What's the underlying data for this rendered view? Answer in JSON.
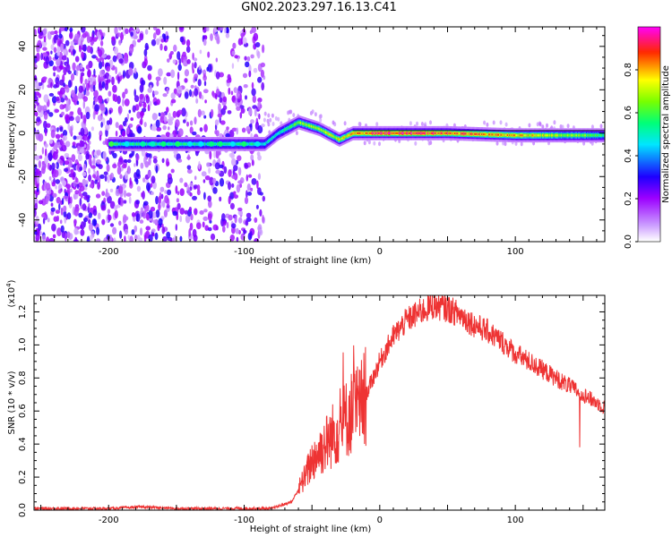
{
  "title": "GN02.2023.297.16.13.C41",
  "chart_data": [
    {
      "type": "heatmap",
      "xlabel": "Height of straight line (km)",
      "ylabel": "Frequency (Hz)",
      "xlim": [
        -255,
        166
      ],
      "ylim": [
        -50,
        49
      ],
      "xticks": [
        -200,
        -100,
        0,
        100
      ],
      "yticks": [
        -40,
        -20,
        0,
        20,
        40
      ],
      "colorbar": {
        "label": "Normalized spectral amplitude",
        "range": [
          0,
          1
        ],
        "ticks": [
          "0.0",
          "0.2",
          "0.4",
          "0.6",
          "0.8"
        ],
        "colormap": [
          "#ffffff",
          "#9c00ff",
          "#0000ff",
          "#00ffff",
          "#00ff00",
          "#ffff00",
          "#ff0000",
          "#ff00ff"
        ]
      },
      "ridge": [
        {
          "x": -200,
          "freq": -5,
          "amp": 0.55
        },
        {
          "x": -150,
          "freq": -5,
          "amp": 0.55
        },
        {
          "x": -100,
          "freq": -5,
          "amp": 0.55
        },
        {
          "x": -85,
          "freq": -5,
          "amp": 0.5
        },
        {
          "x": -75,
          "freq": 0,
          "amp": 0.55
        },
        {
          "x": -60,
          "freq": 5,
          "amp": 0.65
        },
        {
          "x": -45,
          "freq": 2,
          "amp": 0.7
        },
        {
          "x": -30,
          "freq": -3,
          "amp": 0.75
        },
        {
          "x": -20,
          "freq": 0,
          "amp": 0.8
        },
        {
          "x": 0,
          "freq": 0,
          "amp": 0.95
        },
        {
          "x": 50,
          "freq": 0,
          "amp": 0.9
        },
        {
          "x": 100,
          "freq": -1,
          "amp": 0.8
        },
        {
          "x": 166,
          "freq": -1,
          "amp": 0.6
        }
      ]
    },
    {
      "type": "line",
      "xlabel": "Height of straight line (km)",
      "ylabel": "SNR (10 * v/v)",
      "yscale_label": "(x10",
      "yscale_exp": "4",
      "xlim": [
        -255,
        166
      ],
      "ylim": [
        0,
        1.3
      ],
      "xticks": [
        -200,
        -100,
        0,
        100
      ],
      "yticks": [
        "0.0",
        "0.2",
        "0.4",
        "0.6",
        "0.8",
        "1.0",
        "1.2"
      ],
      "color": "#ee3333",
      "series": [
        {
          "x": [
            -255,
            -200,
            -175,
            -150,
            -100,
            -80,
            -65,
            -55,
            -50,
            -45,
            -40,
            -35,
            -30,
            -25,
            -20,
            -15,
            -10,
            -5,
            0,
            10,
            20,
            30,
            40,
            50,
            60,
            70,
            80,
            90,
            100,
            110,
            120,
            130,
            140,
            150,
            160,
            166
          ],
          "values": [
            0.01,
            0.01,
            0.02,
            0.01,
            0.01,
            0.01,
            0.05,
            0.2,
            0.3,
            0.35,
            0.4,
            0.45,
            0.5,
            0.55,
            0.6,
            0.62,
            0.7,
            0.8,
            0.9,
            1.05,
            1.15,
            1.2,
            1.24,
            1.22,
            1.18,
            1.12,
            1.08,
            1.02,
            0.95,
            0.9,
            0.85,
            0.8,
            0.75,
            0.7,
            0.65,
            0.62
          ]
        }
      ]
    }
  ]
}
